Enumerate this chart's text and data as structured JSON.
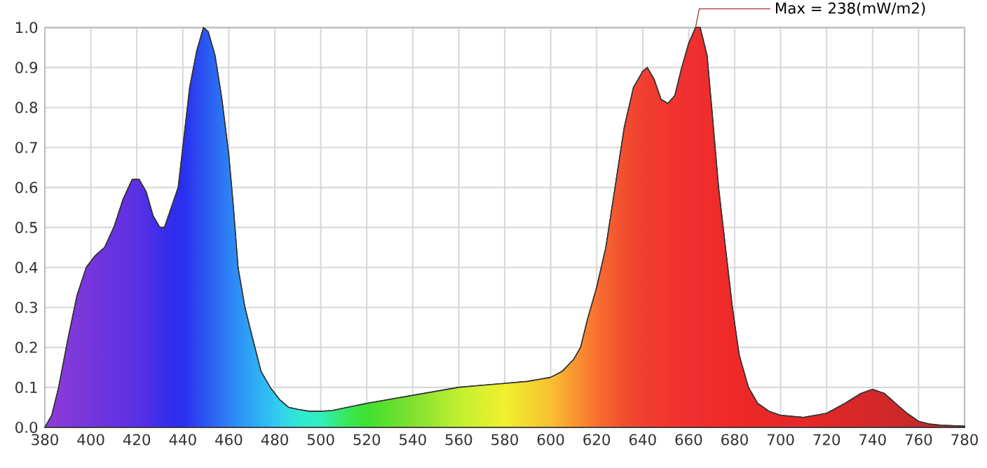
{
  "chart_data": {
    "type": "area",
    "x": [
      380,
      383,
      386,
      390,
      394,
      398,
      402,
      406,
      410,
      414,
      418,
      421,
      424,
      427,
      430,
      432,
      435,
      438,
      440,
      443,
      446,
      449,
      451,
      454,
      457,
      460,
      462,
      464,
      467,
      470,
      474,
      478,
      482,
      486,
      490,
      495,
      500,
      505,
      510,
      520,
      530,
      540,
      550,
      560,
      570,
      580,
      590,
      600,
      605,
      610,
      613,
      616,
      620,
      624,
      628,
      632,
      636,
      640,
      642,
      645,
      648,
      651,
      654,
      657,
      660,
      663,
      665,
      668,
      670,
      673,
      676,
      679,
      682,
      686,
      690,
      695,
      700,
      710,
      720,
      728,
      735,
      740,
      745,
      750,
      755,
      760,
      765,
      770,
      780
    ],
    "series": [
      {
        "color": "#333333",
        "colors": [
          "#8c3cd8",
          "#8a3bd9",
          "#883ad9",
          "#8239da",
          "#7c38db",
          "#7737dc",
          "#7235dd",
          "#6c34df",
          "#6733e0",
          "#6232e2",
          "#5d31e3",
          "#5830e4",
          "#502fe6",
          "#462fe9",
          "#3d2eeb",
          "#382eec",
          "#322eee",
          "#2c2eef",
          "#2a2ef0",
          "#2a3af1",
          "#2b48f1",
          "#2b54f2",
          "#2b5cf2",
          "#2b68f3",
          "#2c74f3",
          "#2c80f4",
          "#2d88f4",
          "#2d90f4",
          "#2e9cf4",
          "#2ea6f4",
          "#2fb4f4",
          "#30c0f4",
          "#30cef0",
          "#30dce0",
          "#30e6d4",
          "#30ecc8",
          "#30f0c0",
          "#34ec90",
          "#38e860",
          "#40e030",
          "#60e030",
          "#80e030",
          "#a0e830",
          "#c0f030",
          "#d8f030",
          "#f0f030",
          "#f4d830",
          "#f8c030",
          "#f8ac30",
          "#f89830",
          "#f88c30",
          "#f88030",
          "#f87030",
          "#f66430",
          "#f45830",
          "#f24c30",
          "#f14630",
          "#f04030",
          "#f03e30",
          "#f03a30",
          "#f03830",
          "#f03630",
          "#f03430",
          "#f03230",
          "#f03030",
          "#f02f2f",
          "#f02e2e",
          "#f02c2c",
          "#f02b2b",
          "#f02a2a",
          "#f02929",
          "#f02828",
          "#ef2828",
          "#ed2828",
          "#eb2828",
          "#ea2828",
          "#e82828",
          "#e42828",
          "#e02828",
          "#da2828",
          "#d72828",
          "#d42828",
          "#d12828",
          "#ce2828",
          "#cb2828",
          "#c82828",
          "#c62828",
          "#c42828",
          "#c02828"
        ],
        "values": [
          0.0,
          0.03,
          0.1,
          0.22,
          0.33,
          0.4,
          0.43,
          0.45,
          0.5,
          0.57,
          0.62,
          0.62,
          0.59,
          0.53,
          0.5,
          0.5,
          0.55,
          0.6,
          0.7,
          0.85,
          0.94,
          1.0,
          0.99,
          0.93,
          0.82,
          0.68,
          0.55,
          0.4,
          0.3,
          0.23,
          0.14,
          0.1,
          0.07,
          0.05,
          0.045,
          0.04,
          0.04,
          0.042,
          0.048,
          0.06,
          0.07,
          0.08,
          0.09,
          0.1,
          0.105,
          0.11,
          0.115,
          0.125,
          0.14,
          0.17,
          0.2,
          0.27,
          0.35,
          0.45,
          0.6,
          0.75,
          0.85,
          0.89,
          0.9,
          0.87,
          0.82,
          0.81,
          0.83,
          0.9,
          0.96,
          1.0,
          1.0,
          0.93,
          0.8,
          0.6,
          0.45,
          0.3,
          0.18,
          0.1,
          0.06,
          0.04,
          0.03,
          0.025,
          0.035,
          0.06,
          0.085,
          0.095,
          0.085,
          0.06,
          0.035,
          0.015,
          0.008,
          0.005,
          0.003
        ]
      }
    ],
    "xlim": [
      380,
      780
    ],
    "ylim": [
      0,
      1.0
    ],
    "xticks": [
      380,
      400,
      420,
      440,
      460,
      480,
      500,
      520,
      540,
      560,
      580,
      600,
      620,
      640,
      660,
      680,
      700,
      720,
      740,
      760,
      780
    ],
    "yticks": [
      {
        "value": 0,
        "label": "0.0"
      },
      0.1,
      0.2,
      0.3,
      0.4,
      0.5,
      0.6,
      0.7,
      0.8,
      0.9,
      {
        "value": 1,
        "label": "1.0"
      }
    ],
    "grid": true,
    "annotations": [
      {
        "text": "Max = 238(mW/m2)",
        "x": 663,
        "y": 1.0
      }
    ]
  }
}
